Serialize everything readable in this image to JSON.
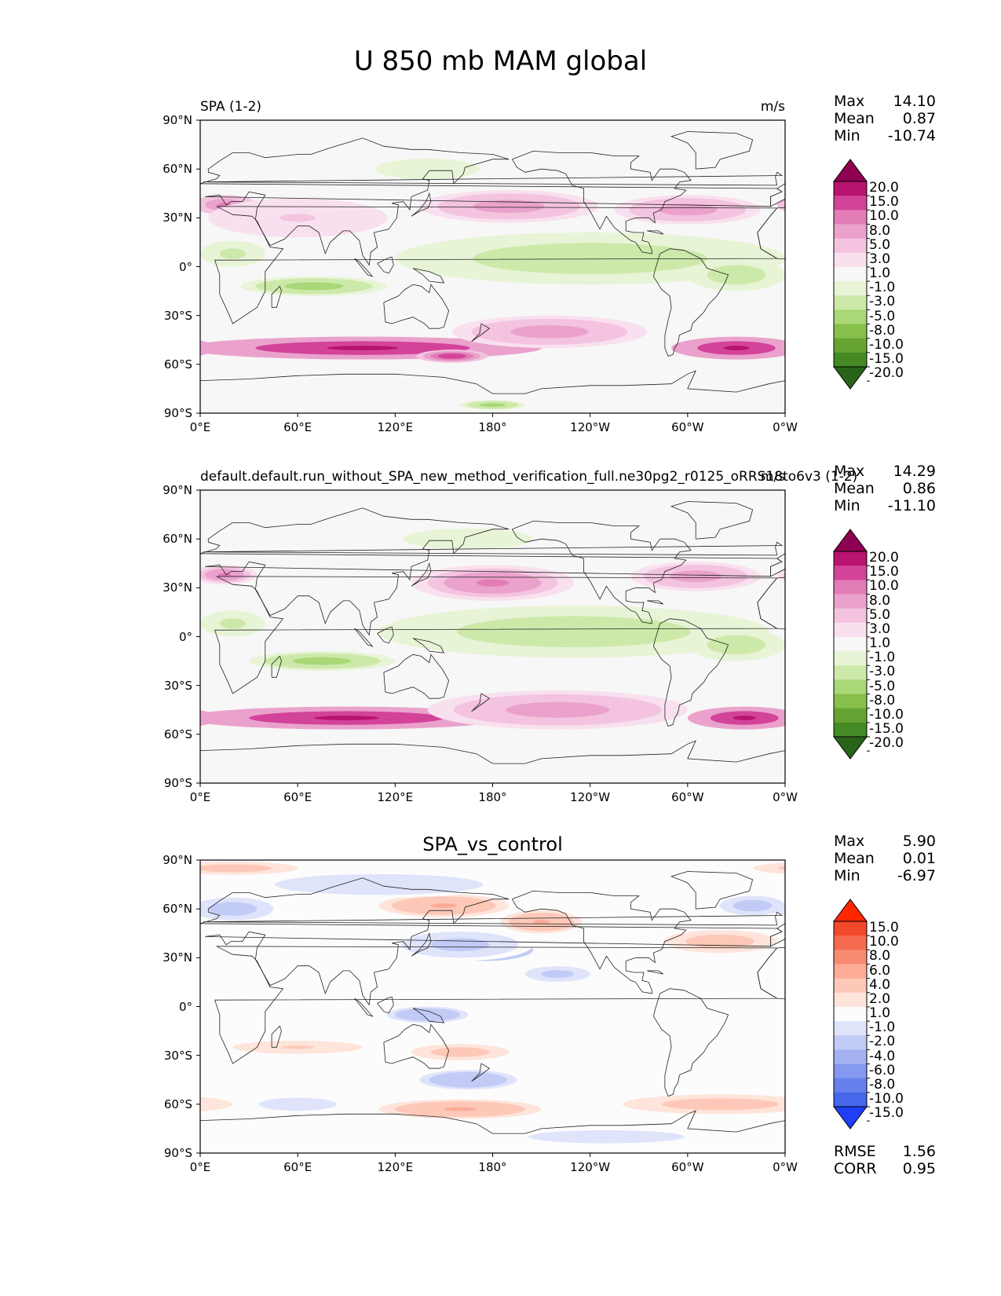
{
  "title": "U 850 mb MAM global",
  "panels": [
    {
      "left_title": "SPA (1-2)",
      "right_title": "m/s",
      "center_title": "",
      "stats": [
        {
          "k": "Max",
          "v": "14.10"
        },
        {
          "k": "Mean",
          "v": "0.87"
        },
        {
          "k": "Min",
          "v": "-10.74"
        }
      ],
      "colorbar": {
        "labels": [
          "20.0",
          "15.0",
          "10.0",
          "8.0",
          "5.0",
          "3.0",
          "1.0",
          "-1.0",
          "-3.0",
          "-5.0",
          "-8.0",
          "-10.0",
          "-15.0",
          "-20.0"
        ],
        "colors": [
          "#8e0152",
          "#b8136e",
          "#d3439a",
          "#e27db7",
          "#eaa2cc",
          "#f3c3df",
          "#f9e0ee",
          "#f7f7f7",
          "#e8f4d6",
          "#cde9aa",
          "#aad777",
          "#86c04b",
          "#65a432",
          "#458a24",
          "#276419"
        ]
      },
      "stats_bottom": []
    },
    {
      "left_title": "default.default.run_without_SPA_new_method_verification_full.ne30pg2_r0125_oRRS18to6v3 (1-2)",
      "right_title": "m/s",
      "center_title": "",
      "stats": [
        {
          "k": "Max",
          "v": "14.29"
        },
        {
          "k": "Mean",
          "v": "0.86"
        },
        {
          "k": "Min",
          "v": "-11.10"
        }
      ],
      "colorbar": {
        "labels": [
          "20.0",
          "15.0",
          "10.0",
          "8.0",
          "5.0",
          "3.0",
          "1.0",
          "-1.0",
          "-3.0",
          "-5.0",
          "-8.0",
          "-10.0",
          "-15.0",
          "-20.0"
        ],
        "colors": [
          "#8e0152",
          "#b8136e",
          "#d3439a",
          "#e27db7",
          "#eaa2cc",
          "#f3c3df",
          "#f9e0ee",
          "#f7f7f7",
          "#e8f4d6",
          "#cde9aa",
          "#aad777",
          "#86c04b",
          "#65a432",
          "#458a24",
          "#276419"
        ]
      },
      "stats_bottom": []
    },
    {
      "left_title": "",
      "right_title": "",
      "center_title": "SPA_vs_control",
      "stats": [
        {
          "k": "Max",
          "v": "5.90"
        },
        {
          "k": "Mean",
          "v": "0.01"
        },
        {
          "k": "Min",
          "v": "-6.97"
        }
      ],
      "colorbar": {
        "labels": [
          "15.0",
          "10.0",
          "8.0",
          "6.0",
          "4.0",
          "2.0",
          "1.0",
          "-1.0",
          "-2.0",
          "-4.0",
          "-6.0",
          "-8.0",
          "-10.0",
          "-15.0"
        ],
        "colors": [
          "#ff2600",
          "#f2492b",
          "#f56a4e",
          "#f88b72",
          "#fcab96",
          "#fdc8b8",
          "#fee4da",
          "#fcfcfc",
          "#dfe4fb",
          "#c2cbf6",
          "#a4b2f2",
          "#8499ef",
          "#6680ec",
          "#4766ea",
          "#1e3ff7"
        ]
      },
      "stats_bottom": [
        {
          "k": "RMSE",
          "v": "1.56"
        },
        {
          "k": "CORR",
          "v": "0.95"
        }
      ]
    }
  ],
  "lat_ticks": [
    "90°N",
    "60°N",
    "30°N",
    "0°",
    "30°S",
    "60°S",
    "90°S"
  ],
  "lon_ticks": [
    "0°E",
    "60°E",
    "120°E",
    "180°",
    "120°W",
    "60°W",
    "0°W"
  ],
  "chart_data": [
    {
      "type": "heatmap",
      "title": "SPA (1-2)",
      "units": "m/s",
      "variable": "U 850 mb MAM global",
      "xlim": [
        0,
        360
      ],
      "ylim": [
        -90,
        90
      ],
      "features": [
        {
          "lon": 100,
          "lat": -50,
          "value": 15,
          "rlon": 110,
          "rlat": 7
        },
        {
          "lon": 330,
          "lat": -50,
          "value": 15,
          "rlon": 40,
          "rlat": 7
        },
        {
          "lon": 155,
          "lat": -55,
          "value": 12,
          "rlon": 22,
          "rlat": 4
        },
        {
          "lon": 215,
          "lat": -40,
          "value": 6,
          "rlon": 60,
          "rlat": 10
        },
        {
          "lon": 210,
          "lat": 37,
          "value": 12,
          "rlon": 15,
          "rlat": 6
        },
        {
          "lon": 190,
          "lat": 37,
          "value": 7,
          "rlon": 55,
          "rlat": 10
        },
        {
          "lon": 305,
          "lat": 37,
          "value": 12,
          "rlon": 15,
          "rlat": 6
        },
        {
          "lon": 300,
          "lat": 35,
          "value": 6,
          "rlon": 45,
          "rlat": 9
        },
        {
          "lon": 15,
          "lat": 38,
          "value": 9,
          "rlon": 20,
          "rlat": 6
        },
        {
          "lon": 60,
          "lat": 30,
          "value": 3,
          "rlon": 55,
          "rlat": 12
        },
        {
          "lon": 210,
          "lat": 5,
          "value": -8,
          "rlon": 70,
          "rlat": 10
        },
        {
          "lon": 240,
          "lat": 5,
          "value": -5,
          "rlon": 120,
          "rlat": 16
        },
        {
          "lon": 70,
          "lat": -12,
          "value": -6,
          "rlon": 45,
          "rlat": 6
        },
        {
          "lon": 20,
          "lat": 8,
          "value": -4,
          "rlon": 20,
          "rlat": 8
        },
        {
          "lon": 330,
          "lat": -5,
          "value": -5,
          "rlon": 30,
          "rlat": 10
        },
        {
          "lon": 140,
          "lat": 60,
          "value": -2,
          "rlon": 40,
          "rlat": 8
        },
        {
          "lon": 180,
          "lat": -85,
          "value": -6,
          "rlon": 20,
          "rlat": 3
        }
      ]
    },
    {
      "type": "heatmap",
      "title": "default.default.run_without_SPA_new_method_verification_full.ne30pg2_r0125_oRRS18to6v3 (1-2)",
      "units": "m/s",
      "variable": "U 850 mb MAM global",
      "xlim": [
        0,
        360
      ],
      "ylim": [
        -90,
        90
      ],
      "features": [
        {
          "lon": 90,
          "lat": -50,
          "value": 15,
          "rlon": 100,
          "rlat": 7
        },
        {
          "lon": 335,
          "lat": -50,
          "value": 15,
          "rlon": 35,
          "rlat": 7
        },
        {
          "lon": 220,
          "lat": -45,
          "value": 7,
          "rlon": 80,
          "rlat": 12
        },
        {
          "lon": 170,
          "lat": 35,
          "value": 14,
          "rlon": 25,
          "rlat": 6
        },
        {
          "lon": 180,
          "lat": 33,
          "value": 8,
          "rlon": 50,
          "rlat": 11
        },
        {
          "lon": 305,
          "lat": 37,
          "value": 7,
          "rlon": 40,
          "rlat": 9
        },
        {
          "lon": 15,
          "lat": 38,
          "value": 8,
          "rlon": 20,
          "rlat": 6
        },
        {
          "lon": 200,
          "lat": 0,
          "value": -9,
          "rlon": 45,
          "rlat": 7
        },
        {
          "lon": 230,
          "lat": 3,
          "value": -5,
          "rlon": 120,
          "rlat": 16
        },
        {
          "lon": 75,
          "lat": -15,
          "value": -6,
          "rlon": 45,
          "rlat": 6
        },
        {
          "lon": 20,
          "lat": 8,
          "value": -4,
          "rlon": 20,
          "rlat": 8
        },
        {
          "lon": 330,
          "lat": -5,
          "value": -5,
          "rlon": 30,
          "rlat": 10
        },
        {
          "lon": 165,
          "lat": 60,
          "value": -2,
          "rlon": 50,
          "rlat": 8
        }
      ]
    },
    {
      "type": "heatmap",
      "title": "SPA_vs_control",
      "variable": "U 850 mb MAM global",
      "xlim": [
        0,
        360
      ],
      "ylim": [
        -90,
        90
      ],
      "features": [
        {
          "lon": 175,
          "lat": 35,
          "value": -6,
          "rlon": 30,
          "rlat": 7
        },
        {
          "lon": 160,
          "lat": 38,
          "value": -2.5,
          "rlon": 45,
          "rlat": 10
        },
        {
          "lon": 220,
          "lat": 20,
          "value": -2.5,
          "rlon": 25,
          "rlat": 6
        },
        {
          "lon": 150,
          "lat": 62,
          "value": 4,
          "rlon": 40,
          "rlat": 7
        },
        {
          "lon": 210,
          "lat": 52,
          "value": 4,
          "rlon": 25,
          "rlat": 7
        },
        {
          "lon": 160,
          "lat": -28,
          "value": 3,
          "rlon": 30,
          "rlat": 5
        },
        {
          "lon": 165,
          "lat": -45,
          "value": -4,
          "rlon": 30,
          "rlat": 6
        },
        {
          "lon": 140,
          "lat": -5,
          "value": -4,
          "rlon": 25,
          "rlat": 5
        },
        {
          "lon": 160,
          "lat": -63,
          "value": 4,
          "rlon": 50,
          "rlat": 6
        },
        {
          "lon": 320,
          "lat": -60,
          "value": 3,
          "rlon": 60,
          "rlat": 6
        },
        {
          "lon": 60,
          "lat": -60,
          "value": -2,
          "rlon": 30,
          "rlat": 5
        },
        {
          "lon": 20,
          "lat": 60,
          "value": -3,
          "rlon": 25,
          "rlat": 7
        },
        {
          "lon": 110,
          "lat": 75,
          "value": -2,
          "rlon": 80,
          "rlat": 8
        },
        {
          "lon": 340,
          "lat": 62,
          "value": -3,
          "rlon": 20,
          "rlat": 6
        },
        {
          "lon": 20,
          "lat": 85,
          "value": 3,
          "rlon": 40,
          "rlat": 4
        },
        {
          "lon": 320,
          "lat": 40,
          "value": 3,
          "rlon": 35,
          "rlat": 7
        },
        {
          "lon": 60,
          "lat": -25,
          "value": 2,
          "rlon": 50,
          "rlat": 5
        },
        {
          "lon": 250,
          "lat": -80,
          "value": -2,
          "rlon": 60,
          "rlat": 5
        }
      ]
    }
  ]
}
